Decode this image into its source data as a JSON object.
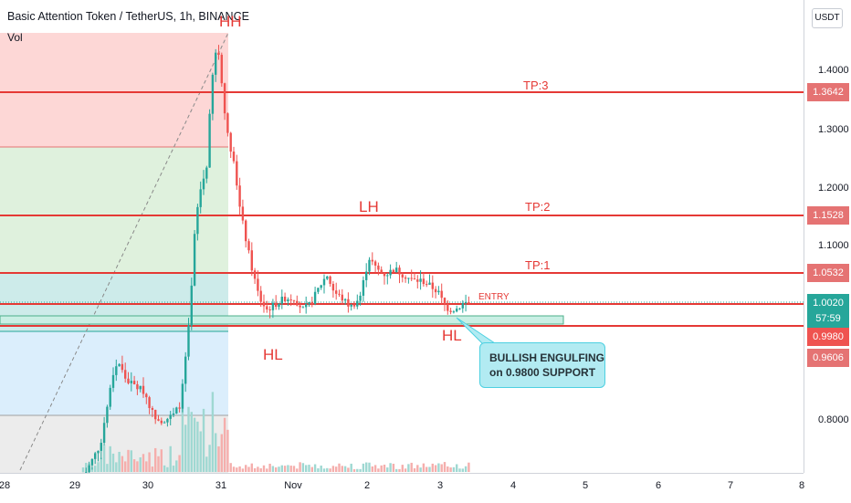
{
  "chart_title": "Basic Attention Token / TetherUS, 1h, BINANCE",
  "volume_label": "Vol",
  "currency_button": "USDT",
  "chart_data": {
    "type": "candlestick",
    "title": "Basic Attention Token / TetherUS, 1h, BINANCE",
    "y_ticks": [
      "1.4000",
      "1.3000",
      "1.2000",
      "1.1000",
      "0.8000"
    ],
    "x_ticks": [
      "28",
      "29",
      "30",
      "31",
      "Nov",
      "2",
      "3",
      "4",
      "5",
      "6",
      "7",
      "8"
    ],
    "ylim": [
      0.7,
      1.5
    ],
    "price_levels": [
      {
        "label": "TP:3",
        "value": 1.3642
      },
      {
        "label": "TP:2",
        "value": 1.1528
      },
      {
        "label": "TP:1",
        "value": 1.0532
      },
      {
        "label": "ENTRY",
        "value": 1.002
      }
    ],
    "price_tags": [
      {
        "text": "1.3642",
        "value": 1.3642,
        "color": "#e57373"
      },
      {
        "text": "1.1528",
        "value": 1.1528,
        "color": "#e57373"
      },
      {
        "text": "1.0532",
        "value": 1.0532,
        "color": "#e57373"
      },
      {
        "text": "1.0020",
        "value": 1.002,
        "color": "#26a69a"
      },
      {
        "text": "57:59",
        "value": 0.982,
        "color": "#26a69a"
      },
      {
        "text": "0.9980",
        "value": 0.998,
        "color": "#ef5350"
      },
      {
        "text": "0.9606",
        "value": 0.9606,
        "color": "#e57373"
      }
    ],
    "annotations": [
      "HH",
      "LH",
      "HL",
      "HL"
    ],
    "callout": [
      "BULLISH ENGULFING",
      "on 0.9800 SUPPORT"
    ],
    "colors": {
      "up": "#26a69a",
      "down": "#ef5350",
      "level": "#e53935"
    }
  }
}
